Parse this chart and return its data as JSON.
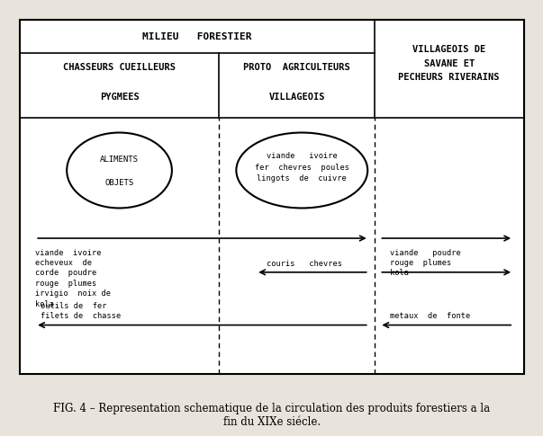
{
  "fig_width": 11.33,
  "fig_height": 7.3,
  "bg_color": "#e8e4dc",
  "header_top": "MILIEU   FORESTIER",
  "header_col1": "CHASSEURS CUEILLEURS\n\nPYGMEES",
  "header_col2": "PROTO  AGRICULTEURS\n\nVILLAGEOIS",
  "header_col3": "VILLAGEOIS DE\nSAVANE ET\nPECHEURS RIVERAINS",
  "ellipse1_text": "ALIMENTS\n\nOBJETS",
  "ellipse2_text": "viande   ivoire\nfer  chevres  poules\nlingots  de  cuivre",
  "arrow1_label": "viande  ivoire\necheveux  de\ncorde  poudre\nrouge  plumes\nirvigio  noix de\nkola",
  "arrow2_label": "viande   poudre\nrouge  plumes\nkola",
  "arrow3_label": "couris   chevres",
  "arrow4_label": "outils de  fer\nfilets de  chasse",
  "arrow5_label": "metaux  de  fonte",
  "caption": "FIG. 4 – Representation schematique de la circulation des produits forestiers a la\nfin du XIXe siécle."
}
